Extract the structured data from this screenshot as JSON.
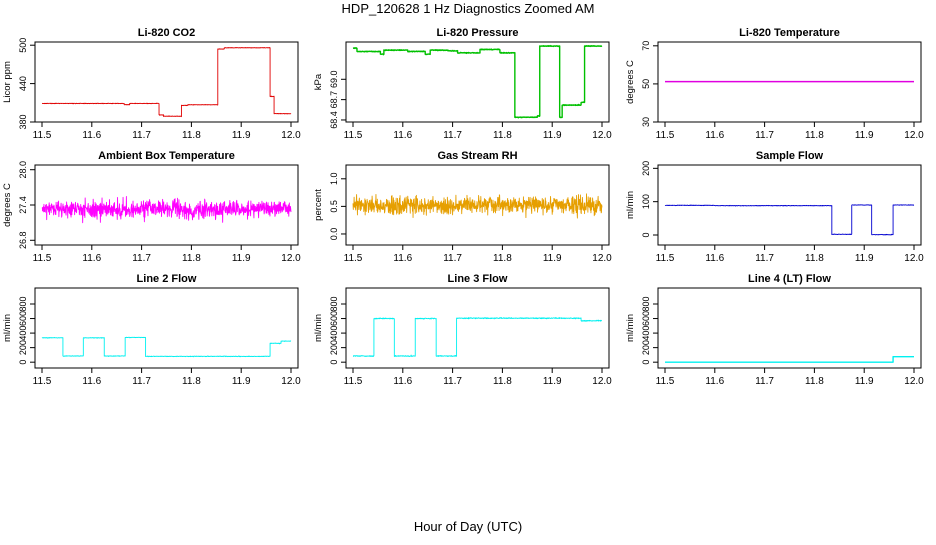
{
  "figure": {
    "title": "HDP_120628  1 Hz Diagnostics Zoomed AM",
    "xlabel": "Hour of Day (UTC)"
  },
  "chart_data": [
    {
      "id": "co2",
      "type": "line",
      "title": "Li-820 CO2",
      "ylabel": "Licor ppm",
      "color": "#e00000",
      "xlim": [
        11.5,
        12.0
      ],
      "ylim": [
        380,
        505
      ],
      "xticks": [
        11.5,
        11.6,
        11.7,
        11.8,
        11.9,
        12.0
      ],
      "xtick_labels": [
        "11.5",
        "11.6",
        "11.7",
        "11.8",
        "11.9",
        "12.0"
      ],
      "yticks": [
        380,
        440,
        500
      ],
      "ytick_labels": [
        "380",
        "440",
        "500"
      ],
      "noise": 0.6,
      "steps": [
        [
          11.5,
          11.665,
          409
        ],
        [
          11.665,
          11.676,
          407
        ],
        [
          11.676,
          11.735,
          409
        ],
        [
          11.735,
          11.744,
          391
        ],
        [
          11.744,
          11.78,
          389
        ],
        [
          11.78,
          11.793,
          406
        ],
        [
          11.793,
          11.853,
          407
        ],
        [
          11.853,
          11.866,
          494
        ],
        [
          11.866,
          11.958,
          496
        ],
        [
          11.958,
          11.966,
          420
        ],
        [
          11.966,
          12.0,
          393
        ]
      ]
    },
    {
      "id": "pressure",
      "type": "line",
      "title": "Li-820 Pressure",
      "ylabel": "kPa",
      "color": "#00c000",
      "xlim": [
        11.5,
        12.0
      ],
      "ylim": [
        68.37,
        69.55
      ],
      "xticks": [
        11.5,
        11.6,
        11.7,
        11.8,
        11.9,
        12.0
      ],
      "xtick_labels": [
        "11.5",
        "11.6",
        "11.7",
        "11.8",
        "11.9",
        "12.0"
      ],
      "yticks": [
        68.4,
        68.7,
        69.0
      ],
      "ytick_labels": [
        "68.4",
        "68.7",
        "69.0"
      ],
      "noise": 0.008,
      "steps": [
        [
          11.5,
          11.508,
          69.46
        ],
        [
          11.508,
          11.555,
          69.41
        ],
        [
          11.555,
          11.562,
          69.37
        ],
        [
          11.562,
          11.61,
          69.43
        ],
        [
          11.61,
          11.645,
          69.41
        ],
        [
          11.645,
          11.655,
          69.37
        ],
        [
          11.655,
          11.69,
          69.43
        ],
        [
          11.69,
          11.71,
          69.42
        ],
        [
          11.71,
          11.755,
          69.39
        ],
        [
          11.755,
          11.795,
          69.44
        ],
        [
          11.795,
          11.825,
          69.39
        ],
        [
          11.825,
          11.87,
          68.44
        ],
        [
          11.87,
          11.875,
          68.46
        ],
        [
          11.875,
          11.915,
          69.49
        ],
        [
          11.915,
          11.92,
          68.44
        ],
        [
          11.92,
          11.958,
          68.62
        ],
        [
          11.958,
          11.965,
          68.66
        ],
        [
          11.965,
          12.0,
          69.49
        ]
      ]
    },
    {
      "id": "li820temp",
      "type": "line",
      "title": "Li-820 Temperature",
      "ylabel": "degrees C",
      "color": "#e000e0",
      "xlim": [
        11.5,
        12.0
      ],
      "ylim": [
        30,
        72
      ],
      "xticks": [
        11.5,
        11.6,
        11.7,
        11.8,
        11.9,
        12.0
      ],
      "xtick_labels": [
        "11.5",
        "11.6",
        "11.7",
        "11.8",
        "11.9",
        "12.0"
      ],
      "yticks": [
        30,
        50,
        70
      ],
      "ytick_labels": [
        "30",
        "50",
        "70"
      ],
      "noise": 0,
      "steps": [
        [
          11.5,
          12.0,
          51.2
        ]
      ]
    },
    {
      "id": "boxtemp",
      "type": "line",
      "title": "Ambient Box Temperature",
      "ylabel": "degrees C",
      "color": "#ff00ff",
      "xlim": [
        11.5,
        12.0
      ],
      "ylim": [
        26.72,
        28.08
      ],
      "xticks": [
        11.5,
        11.6,
        11.7,
        11.8,
        11.9,
        12.0
      ],
      "xtick_labels": [
        "11.5",
        "11.6",
        "11.7",
        "11.8",
        "11.9",
        "12.0"
      ],
      "yticks": [
        26.8,
        27.4,
        28.0
      ],
      "ytick_labels": [
        "26.8",
        "27.4",
        "28.0"
      ],
      "noise": 0.22,
      "vmin": 26.78,
      "vmax": 28.03,
      "steps": [
        [
          11.5,
          12.0,
          27.33
        ]
      ]
    },
    {
      "id": "rh",
      "type": "line",
      "title": "Gas Stream RH",
      "ylabel": "percent",
      "color": "#e69f00",
      "xlim": [
        11.5,
        12.0
      ],
      "ylim": [
        -0.2,
        1.25
      ],
      "xticks": [
        11.5,
        11.6,
        11.7,
        11.8,
        11.9,
        12.0
      ],
      "xtick_labels": [
        "11.5",
        "11.6",
        "11.7",
        "11.8",
        "11.9",
        "12.0"
      ],
      "yticks": [
        0.0,
        0.5,
        1.0
      ],
      "ytick_labels": [
        "0.0",
        "0.5",
        "1.0"
      ],
      "noise": 0.23,
      "vmin": -0.18,
      "vmax": 1.15,
      "steps": [
        [
          11.5,
          12.0,
          0.52
        ]
      ]
    },
    {
      "id": "sampleflow",
      "type": "line",
      "title": "Sample Flow",
      "ylabel": "ml/min",
      "color": "#0000d0",
      "xlim": [
        11.5,
        12.0
      ],
      "ylim": [
        -30,
        210
      ],
      "xticks": [
        11.5,
        11.6,
        11.7,
        11.8,
        11.9,
        12.0
      ],
      "xtick_labels": [
        "11.5",
        "11.6",
        "11.7",
        "11.8",
        "11.9",
        "12.0"
      ],
      "yticks": [
        0,
        100,
        200
      ],
      "ytick_labels": [
        "0",
        "100",
        "200"
      ],
      "noise": 1.2,
      "steps": [
        [
          11.5,
          11.6,
          89
        ],
        [
          11.6,
          11.7,
          88
        ],
        [
          11.7,
          11.835,
          88
        ],
        [
          11.835,
          11.875,
          2
        ],
        [
          11.875,
          11.915,
          90
        ],
        [
          11.915,
          11.958,
          1
        ],
        [
          11.958,
          12.0,
          90
        ]
      ]
    },
    {
      "id": "line2",
      "type": "line",
      "title": "Line 2 Flow",
      "ylabel": "ml/min",
      "color": "#00f0f0",
      "xlim": [
        11.5,
        12.0
      ],
      "ylim": [
        -80,
        1020
      ],
      "xticks": [
        11.5,
        11.6,
        11.7,
        11.8,
        11.9,
        12.0
      ],
      "xtick_labels": [
        "11.5",
        "11.6",
        "11.7",
        "11.8",
        "11.9",
        "12.0"
      ],
      "yticks": [
        0,
        200,
        400,
        600,
        800
      ],
      "ytick_labels": [
        "0",
        "200",
        "400",
        "600",
        "800"
      ],
      "noise": 6,
      "steps": [
        [
          11.5,
          11.542,
          335
        ],
        [
          11.542,
          11.583,
          85
        ],
        [
          11.583,
          11.625,
          335
        ],
        [
          11.625,
          11.667,
          85
        ],
        [
          11.667,
          11.708,
          340
        ],
        [
          11.708,
          11.958,
          80
        ],
        [
          11.958,
          11.98,
          260
        ],
        [
          11.98,
          12.0,
          290
        ]
      ]
    },
    {
      "id": "line3",
      "type": "line",
      "title": "Line 3 Flow",
      "ylabel": "ml/min",
      "color": "#00f0f0",
      "xlim": [
        11.5,
        12.0
      ],
      "ylim": [
        -80,
        1020
      ],
      "xticks": [
        11.5,
        11.6,
        11.7,
        11.8,
        11.9,
        12.0
      ],
      "xtick_labels": [
        "11.5",
        "11.6",
        "11.7",
        "11.8",
        "11.9",
        "12.0"
      ],
      "yticks": [
        0,
        200,
        400,
        600,
        800
      ],
      "ytick_labels": [
        "0",
        "200",
        "400",
        "600",
        "800"
      ],
      "noise": 10,
      "steps": [
        [
          11.5,
          11.542,
          85
        ],
        [
          11.542,
          11.583,
          600
        ],
        [
          11.583,
          11.625,
          85
        ],
        [
          11.625,
          11.667,
          600
        ],
        [
          11.667,
          11.708,
          85
        ],
        [
          11.708,
          11.958,
          605
        ],
        [
          11.958,
          12.0,
          570
        ]
      ]
    },
    {
      "id": "line4",
      "type": "line",
      "title": "Line 4 (LT) Flow",
      "ylabel": "ml/min",
      "color": "#00f0f0",
      "xlim": [
        11.5,
        12.0
      ],
      "ylim": [
        -80,
        1020
      ],
      "xticks": [
        11.5,
        11.6,
        11.7,
        11.8,
        11.9,
        12.0
      ],
      "xtick_labels": [
        "11.5",
        "11.6",
        "11.7",
        "11.8",
        "11.9",
        "12.0"
      ],
      "yticks": [
        0,
        200,
        400,
        600,
        800
      ],
      "ytick_labels": [
        "0",
        "200",
        "400",
        "600",
        "800"
      ],
      "noise": 0,
      "steps": [
        [
          11.5,
          11.958,
          0
        ],
        [
          11.958,
          12.0,
          75
        ]
      ]
    }
  ]
}
